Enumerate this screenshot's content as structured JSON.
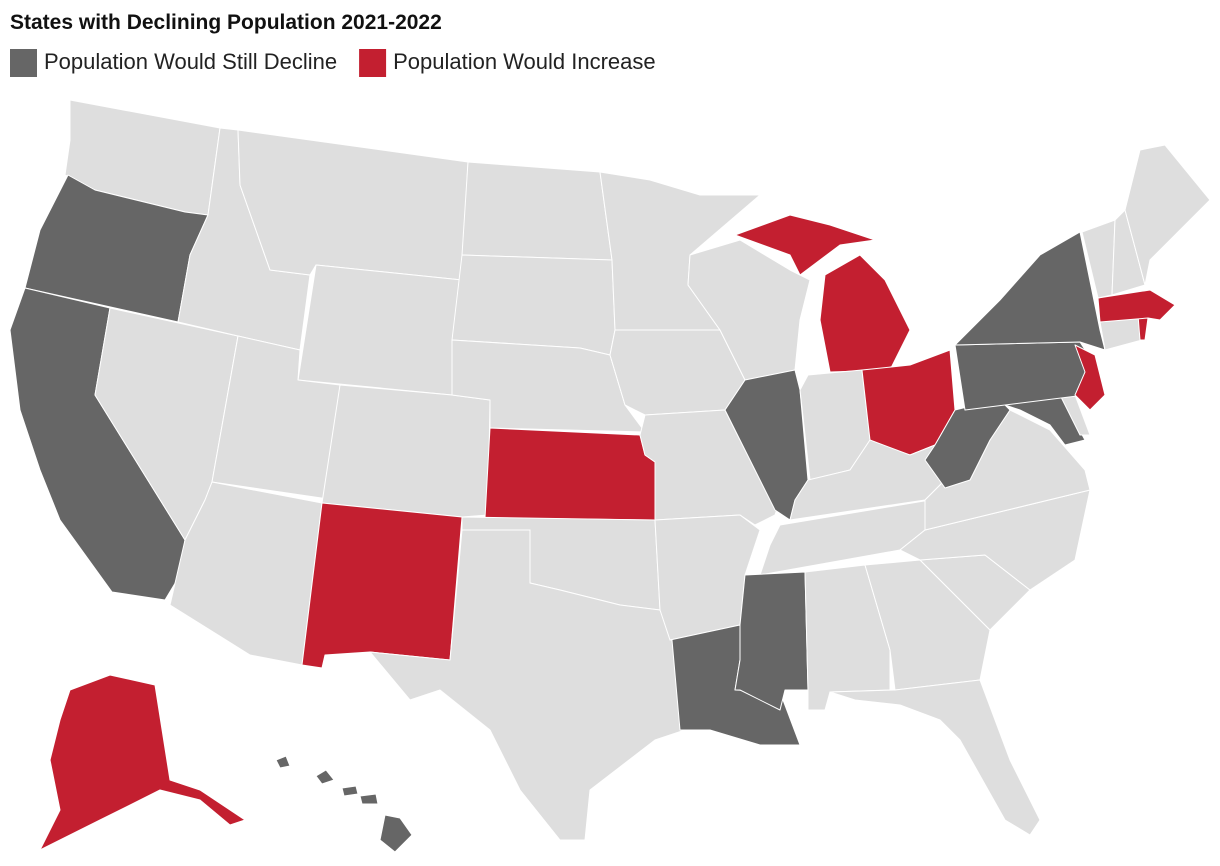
{
  "title": "States with Declining Population 2021-2022",
  "legend": [
    {
      "label": "Population Would Still Decline",
      "color": "#666666"
    },
    {
      "label": "Population Would Increase",
      "color": "#c31f30"
    }
  ]
}
